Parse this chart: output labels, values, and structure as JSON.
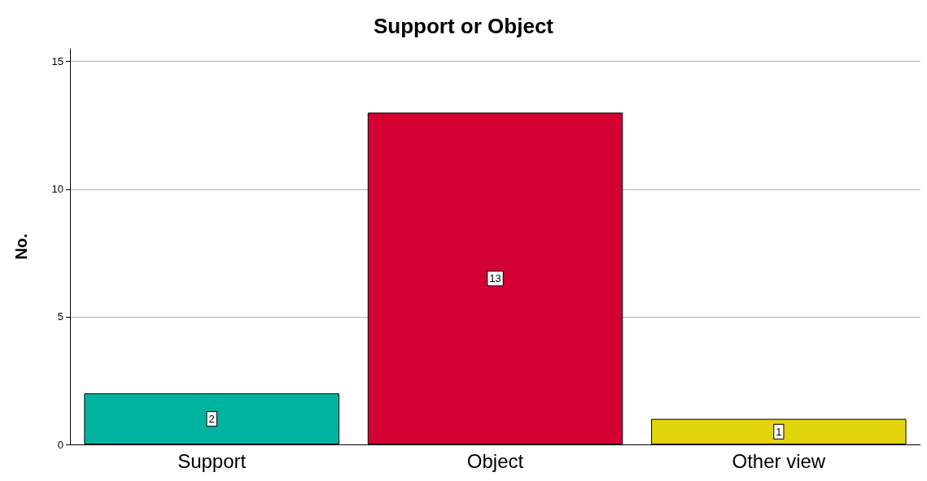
{
  "chart_data": {
    "type": "bar",
    "title": "Support or Object",
    "ylabel": "No.",
    "categories": [
      "Support",
      "Object",
      "Other view"
    ],
    "values": [
      2,
      13,
      1
    ],
    "colors": [
      "#00b3a0",
      "#d50032",
      "#e2d50e"
    ],
    "ylim": [
      0,
      15.5
    ],
    "yticks": [
      0,
      5,
      10,
      15
    ],
    "grid": "y",
    "data_labels": true
  }
}
